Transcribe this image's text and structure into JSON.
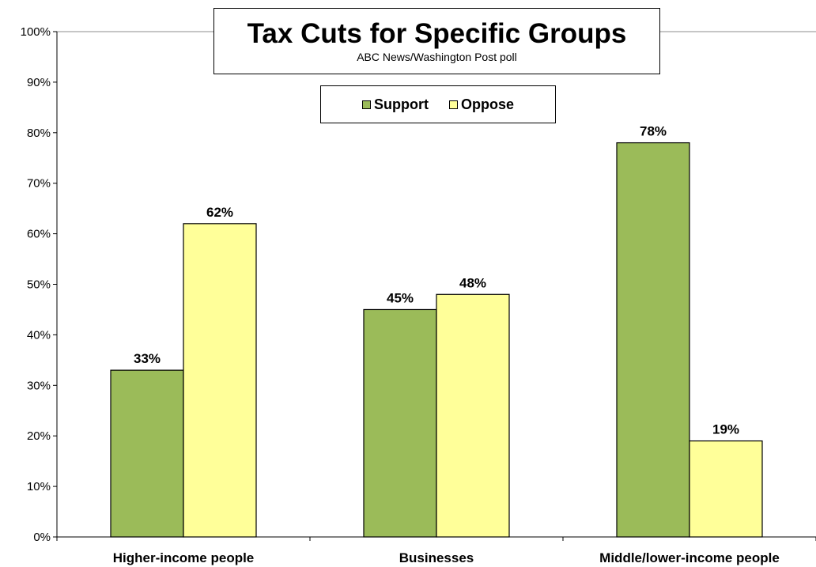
{
  "chart_data": {
    "type": "bar",
    "title": "Tax Cuts for Specific Groups",
    "subtitle": "ABC News/Washington Post poll",
    "categories": [
      "Higher-income people",
      "Businesses",
      "Middle/lower-income people"
    ],
    "series": [
      {
        "name": "Support",
        "values": [
          33,
          45,
          78
        ],
        "color": "#9bbb59"
      },
      {
        "name": "Oppose",
        "values": [
          62,
          48,
          19
        ],
        "color": "#ffff99"
      }
    ],
    "data_labels": [
      [
        "33%",
        "62%"
      ],
      [
        "45%",
        "48%"
      ],
      [
        "78%",
        "19%"
      ]
    ],
    "y_ticks": [
      "0%",
      "10%",
      "20%",
      "30%",
      "40%",
      "50%",
      "60%",
      "70%",
      "80%",
      "90%",
      "100%"
    ],
    "ylim": [
      0,
      100
    ],
    "grid": "top-line-only",
    "legend_position": "top-center"
  }
}
